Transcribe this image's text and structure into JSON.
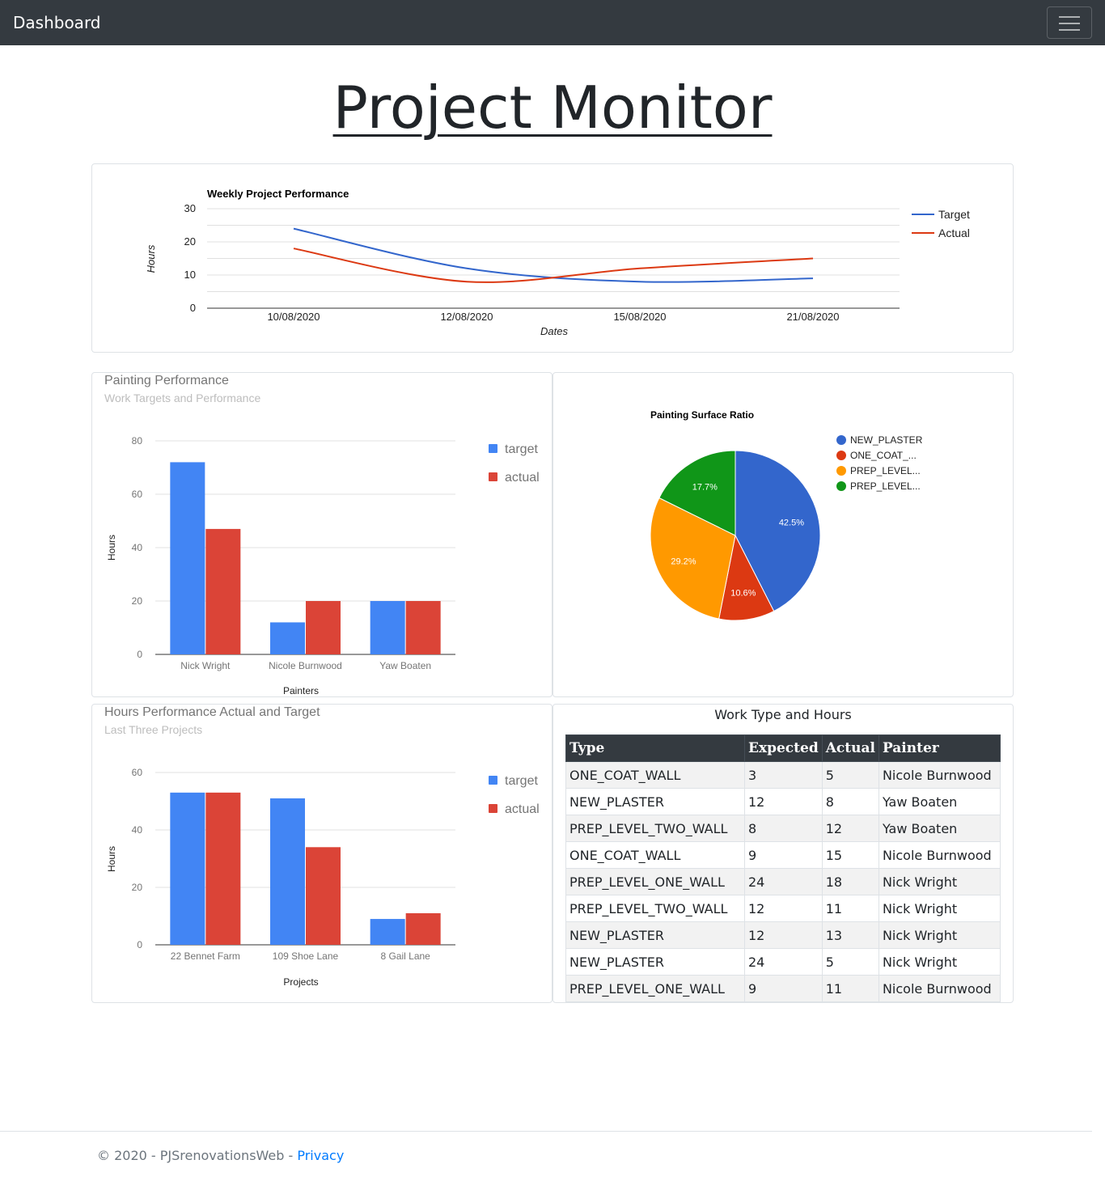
{
  "navbar": {
    "brand": "Dashboard",
    "menu_icon": "hamburger-icon"
  },
  "page_title": "Project Monitor",
  "weekly_chart": {
    "chart_data": {
      "type": "line",
      "title": "Weekly Project Performance",
      "xlabel": "Dates",
      "ylabel": "Hours",
      "x": [
        "10/08/2020",
        "12/08/2020",
        "15/08/2020",
        "21/08/2020"
      ],
      "yticks": [
        0,
        10,
        20,
        30
      ],
      "ylim": [
        0,
        30
      ],
      "grid": true,
      "legend": "right",
      "series": [
        {
          "name": "Target",
          "values": [
            24,
            12,
            8,
            9
          ],
          "color": "#3366cc"
        },
        {
          "name": "Actual",
          "values": [
            18,
            8,
            12,
            15
          ],
          "color": "#dc3912"
        }
      ]
    }
  },
  "painting_chart": {
    "title": "Painting Performance",
    "subtitle": "Work Targets and Performance",
    "chart_data": {
      "type": "bar",
      "categories": [
        "Nick Wright",
        "Nicole Burnwood",
        "Yaw Boaten"
      ],
      "xlabel": "Painters",
      "ylabel": "Hours",
      "yticks": [
        0,
        20,
        40,
        60,
        80
      ],
      "ylim": [
        0,
        80
      ],
      "legend": "right",
      "series": [
        {
          "name": "target",
          "values": [
            72,
            12,
            20
          ],
          "color": "#4285f4"
        },
        {
          "name": "actual",
          "values": [
            47,
            20,
            20
          ],
          "color": "#db4437"
        }
      ]
    }
  },
  "pie_chart": {
    "chart_data": {
      "type": "pie",
      "title": "Painting Surface Ratio",
      "legend": "right",
      "slices": [
        {
          "label": "NEW_PLASTER",
          "value": 42.5,
          "display": "42.5%",
          "color": "#3366cc"
        },
        {
          "label": "ONE_COAT_...",
          "value": 10.6,
          "display": "10.6%",
          "color": "#dc3912"
        },
        {
          "label": "PREP_LEVEL...",
          "value": 29.2,
          "display": "29.2%",
          "color": "#ff9900"
        },
        {
          "label": "PREP_LEVEL...",
          "value": 17.7,
          "display": "17.7%",
          "color": "#109618"
        }
      ]
    }
  },
  "hours_chart": {
    "title": "Hours Performance Actual and Target",
    "subtitle": "Last Three Projects",
    "chart_data": {
      "type": "bar",
      "categories": [
        "22 Bennet Farm",
        "109 Shoe Lane",
        "8 Gail Lane"
      ],
      "xlabel": "Projects",
      "ylabel": "Hours",
      "yticks": [
        0,
        20,
        40,
        60
      ],
      "ylim": [
        0,
        60
      ],
      "legend": "right",
      "series": [
        {
          "name": "target",
          "values": [
            53,
            51,
            9
          ],
          "color": "#4285f4"
        },
        {
          "name": "actual",
          "values": [
            53,
            34,
            11
          ],
          "color": "#db4437"
        }
      ]
    }
  },
  "work_table": {
    "title": "Work Type and Hours",
    "columns": [
      "Type",
      "Expected",
      "Actual",
      "Painter"
    ],
    "rows": [
      [
        "ONE_COAT_WALL",
        "3",
        "5",
        "Nicole Burnwood"
      ],
      [
        "NEW_PLASTER",
        "12",
        "8",
        "Yaw Boaten"
      ],
      [
        "PREP_LEVEL_TWO_WALL",
        "8",
        "12",
        "Yaw Boaten"
      ],
      [
        "ONE_COAT_WALL",
        "9",
        "15",
        "Nicole Burnwood"
      ],
      [
        "PREP_LEVEL_ONE_WALL",
        "24",
        "18",
        "Nick Wright"
      ],
      [
        "PREP_LEVEL_TWO_WALL",
        "12",
        "11",
        "Nick Wright"
      ],
      [
        "NEW_PLASTER",
        "12",
        "13",
        "Nick Wright"
      ],
      [
        "NEW_PLASTER",
        "24",
        "5",
        "Nick Wright"
      ],
      [
        "PREP_LEVEL_ONE_WALL",
        "9",
        "11",
        "Nicole Burnwood"
      ]
    ]
  },
  "footer": {
    "text": "© 2020 - PJSrenovationsWeb - ",
    "privacy_link": "Privacy"
  }
}
